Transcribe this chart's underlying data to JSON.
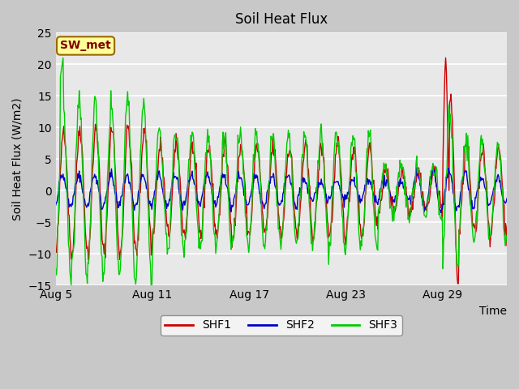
{
  "title": "Soil Heat Flux",
  "ylabel": "Soil Heat Flux (W/m2)",
  "xlabel": "Time",
  "ylim": [
    -15,
    25
  ],
  "yticks": [
    -15,
    -10,
    -5,
    0,
    5,
    10,
    15,
    20,
    25
  ],
  "xtick_labels": [
    "Aug 5",
    "Aug 11",
    "Aug 17",
    "Aug 23",
    "Aug 29"
  ],
  "annotation": "SW_met",
  "legend_entries": [
    "SHF1",
    "SHF2",
    "SHF3"
  ],
  "colors": {
    "SHF1": "#cc0000",
    "SHF2": "#0000cc",
    "SHF3": "#00cc00"
  },
  "bg_color": "#e8e8e8",
  "grid_color": "white",
  "num_days": 28,
  "samples_per_day": 24
}
